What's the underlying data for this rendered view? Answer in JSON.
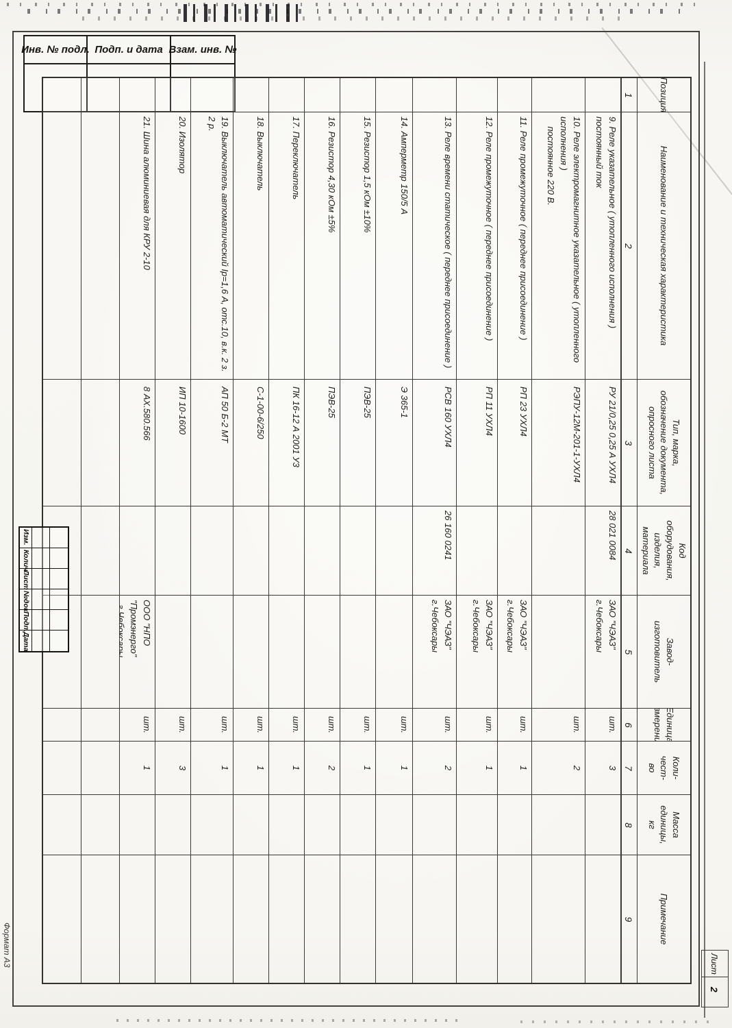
{
  "page": {
    "format_label": "Формат А3",
    "sheet_label": "Лист",
    "sheet_number": "2"
  },
  "stamp_strip": {
    "labels": [
      "Инв. № подл.",
      "Подп. и дата",
      "Взам. инв. №"
    ]
  },
  "revision_strip": {
    "labels": [
      "Изм.",
      "Колич.",
      "Лист",
      "№док.",
      "Подп.",
      "Дата"
    ]
  },
  "table": {
    "headers": [
      {
        "num": "1",
        "label": "Позиция"
      },
      {
        "num": "2",
        "label": "Наименование и техническая характеристика"
      },
      {
        "num": "3",
        "label": "Тип, марка,\nобозначение документа,\nопросного листа"
      },
      {
        "num": "4",
        "label": "Код\nоборудования,\nизделия,\nматериала"
      },
      {
        "num": "5",
        "label": "Завод-\nизготовитель"
      },
      {
        "num": "6",
        "label": "Единица\nизмерения"
      },
      {
        "num": "7",
        "label": "Коли-\nчест-\nво"
      },
      {
        "num": "8",
        "label": "Масса\nединицы,\nкг"
      },
      {
        "num": "9",
        "label": "Примечание"
      }
    ],
    "rows": [
      {
        "pos": "",
        "name": "9. Реле указательное ( утопленного исполнения )  постоянный ток",
        "type": "РУ 21/0,25 0,25 А УХЛ4",
        "code": "28 021 0084",
        "manuf": "ЗАО \"ЧЭАЗ\" г.Чебоксары",
        "unit": "шт.",
        "qty": "3",
        "mass": "",
        "note": ""
      },
      {
        "pos": "",
        "name": "10. Реле электромагнитное указательное ( утопленного исполнения )\n    постоянное 220 В.",
        "type": "РЭПУ-12М-201-1-УХЛ4",
        "code": "",
        "manuf": "",
        "unit": "шт.",
        "qty": "2",
        "mass": "",
        "note": ""
      },
      {
        "pos": "",
        "name": "11. Реле промежуточное ( переднее присоединение )",
        "type": "РП 23 УХЛ4",
        "code": "",
        "manuf": "ЗАО \"ЧЭАЗ\" г.Чебоксары",
        "unit": "шт.",
        "qty": "1",
        "mass": "",
        "note": ""
      },
      {
        "pos": "",
        "name": "12. Реле промежуточное ( переднее присоединение )",
        "type": "РП 11 УХЛ4",
        "code": "",
        "manuf": "ЗАО \"ЧЭАЗ\" г.Чебоксары",
        "unit": "шт.",
        "qty": "1",
        "mass": "",
        "note": ""
      },
      {
        "pos": "",
        "name": "13. Реле времени статическое ( переднее присоединение )",
        "type": "РСВ 160 УХЛ4",
        "code": "26 160 0241",
        "manuf": "ЗАО \"ЧЭАЗ\" г.Чебоксары",
        "unit": "шт.",
        "qty": "2",
        "mass": "",
        "note": ""
      },
      {
        "pos": "",
        "name": "14. Амперметр 150/5 А",
        "type": "Э 365-1",
        "code": "",
        "manuf": "",
        "unit": "шт.",
        "qty": "1",
        "mass": "",
        "note": ""
      },
      {
        "pos": "",
        "name": "15. Резистор 1,5 кОм ±10%",
        "type": "ПЭВ-25",
        "code": "",
        "manuf": "",
        "unit": "шт.",
        "qty": "1",
        "mass": "",
        "note": ""
      },
      {
        "pos": "",
        "name": "16. Резистор 4,30 кОм ±5%",
        "type": "ПЭВ-25",
        "code": "",
        "manuf": "",
        "unit": "шт.",
        "qty": "2",
        "mass": "",
        "note": ""
      },
      {
        "pos": "",
        "name": "17. Переключатель",
        "type": "ПК 16-12 А 2001 У3",
        "code": "",
        "manuf": "",
        "unit": "шт.",
        "qty": "1",
        "mass": "",
        "note": ""
      },
      {
        "pos": "",
        "name": "18. Выключатель",
        "type": "С-1-00-6/250",
        "code": "",
        "manuf": "",
        "unit": "шт.",
        "qty": "1",
        "mass": "",
        "note": ""
      },
      {
        "pos": "",
        "name": "19. Выключатель автоматический Iр=1,6 А, отс.10, в.к. 2 з. 2 р.",
        "type": "АП 50 Б-2 МТ",
        "code": "",
        "manuf": "",
        "unit": "шт.",
        "qty": "1",
        "mass": "",
        "note": ""
      },
      {
        "pos": "",
        "name": "20. Изолятор",
        "type": "ИП 10-1600",
        "code": "",
        "manuf": "",
        "unit": "шт.",
        "qty": "3",
        "mass": "",
        "note": ""
      },
      {
        "pos": "",
        "name": "21. Шина алюминиевая для КРУ 2-10",
        "type": "8 АХ.580.566",
        "code": "",
        "manuf": "ООО \"НПО \"Промэнерго\"\n  г.Чебоксары",
        "unit": "шт.",
        "qty": "1",
        "mass": "",
        "note": ""
      }
    ]
  }
}
